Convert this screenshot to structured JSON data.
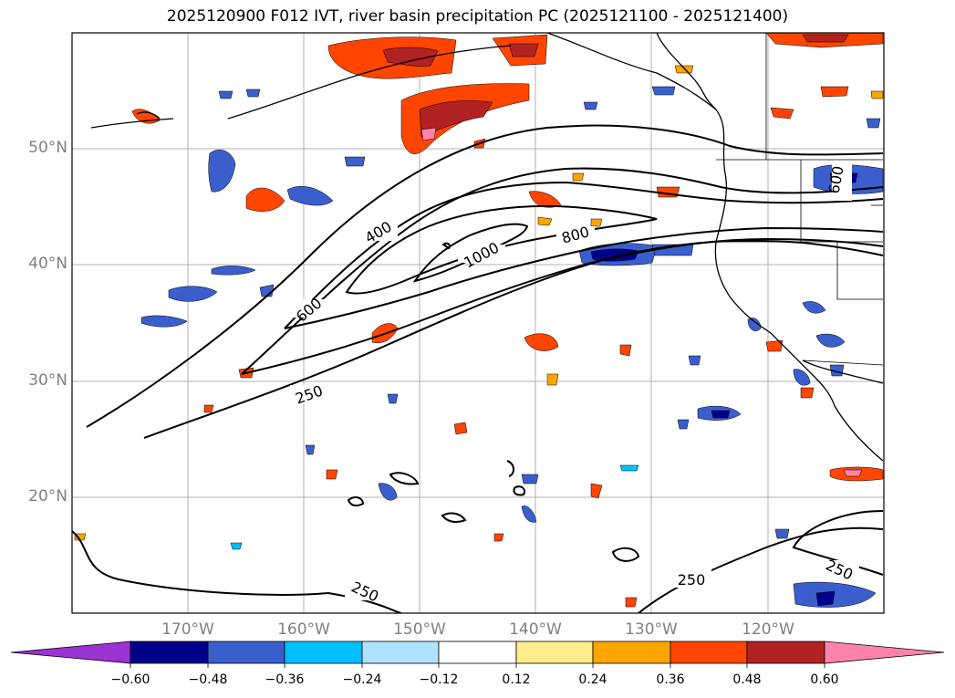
{
  "title": "2025120900 F012 IVT, river basin precipitation PC (2025121100 - 2025121400)",
  "map": {
    "lon_range": [
      -180,
      -110
    ],
    "lat_range": [
      10,
      60
    ],
    "lat_labels": [
      "50°N",
      "40°N",
      "30°N",
      "20°N"
    ],
    "lon_labels": [
      "170°W",
      "160°W",
      "150°W",
      "140°W",
      "130°W",
      "120°W"
    ],
    "ivt_contour_labels": [
      "400",
      "600",
      "250",
      "1000",
      "800",
      "600",
      "250",
      "250",
      "250"
    ],
    "ivt_levels": [
      250,
      400,
      600,
      800,
      1000
    ]
  },
  "colorbar": {
    "ticks": [
      "−0.60",
      "−0.48",
      "−0.36",
      "−0.24",
      "−0.12",
      "0.12",
      "0.24",
      "0.36",
      "0.48",
      "0.60"
    ],
    "colors": [
      "#9b32d2",
      "#00008b",
      "#3a5fcd",
      "#00bfff",
      "#b0e2ff",
      "#ffffff",
      "#ffec8b",
      "#ffa500",
      "#ff4500",
      "#b22222",
      "#ff82ab"
    ]
  }
}
